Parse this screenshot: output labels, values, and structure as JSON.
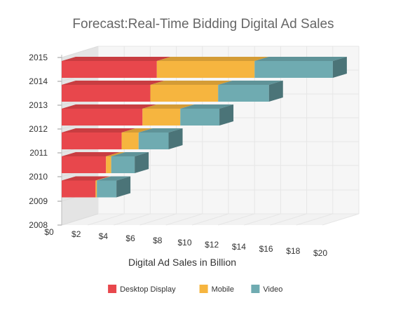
{
  "chart_data": {
    "type": "bar",
    "orientation": "horizontal",
    "stacked": true,
    "three_d": true,
    "title": "Forecast:Real-Time Bidding Digital Ad Sales",
    "xlabel": "Digital Ad Sales in Billion",
    "ylabel": "",
    "xlim": [
      0,
      20
    ],
    "x_ticks": [
      "$0",
      "$2",
      "$4",
      "$6",
      "$8",
      "$10",
      "$12",
      "$14",
      "$16",
      "$18",
      "$20"
    ],
    "y_ticks": [
      "2008",
      "2009",
      "2010",
      "2011",
      "2012",
      "2013",
      "2014",
      "2015"
    ],
    "categories": [
      "2009",
      "2010",
      "2011",
      "2012",
      "2013",
      "2014"
    ],
    "series": [
      {
        "name": "Desktop Display",
        "color": "#e8474c",
        "values": [
          2.6,
          3.4,
          4.6,
          6.2,
          6.8,
          7.3
        ]
      },
      {
        "name": "Mobile",
        "color": "#f6b53f",
        "values": [
          0.1,
          0.4,
          1.3,
          2.9,
          5.2,
          7.5
        ]
      },
      {
        "name": "Video",
        "color": "#6fabb1",
        "values": [
          1.5,
          1.8,
          2.3,
          3.0,
          3.9,
          6.0
        ]
      }
    ],
    "grid": true,
    "legend_position": "bottom"
  }
}
